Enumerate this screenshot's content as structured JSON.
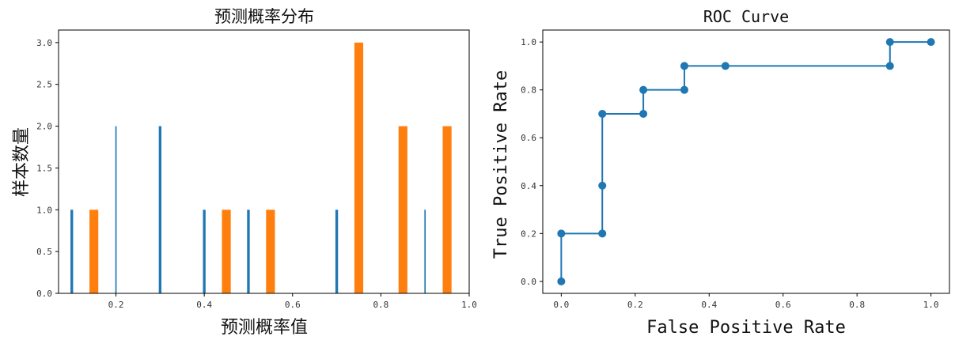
{
  "chart_data": [
    {
      "type": "bar",
      "title": "预测概率分布",
      "xlabel": "预测概率值",
      "ylabel": "样本数量",
      "xlim": [
        0.07,
        1.0
      ],
      "ylim": [
        0,
        3.15
      ],
      "xticks": [
        "0.2",
        "0.4",
        "0.6",
        "0.8",
        "1.0"
      ],
      "yticks": [
        "0.0",
        "0.5",
        "1.0",
        "1.5",
        "2.0",
        "2.5",
        "3.0"
      ],
      "series": [
        {
          "color": "#1f77b4",
          "bars": [
            {
              "x": 0.1,
              "value": 1,
              "width": 0.006
            },
            {
              "x": 0.2,
              "value": 2,
              "width": 0.003
            },
            {
              "x": 0.3,
              "value": 2,
              "width": 0.006
            },
            {
              "x": 0.4,
              "value": 1,
              "width": 0.006
            },
            {
              "x": 0.5,
              "value": 1,
              "width": 0.006
            },
            {
              "x": 0.7,
              "value": 1,
              "width": 0.006
            },
            {
              "x": 0.9,
              "value": 1,
              "width": 0.003
            }
          ]
        },
        {
          "color": "#ff7f0e",
          "bars": [
            {
              "x": 0.15,
              "value": 1,
              "width": 0.02
            },
            {
              "x": 0.45,
              "value": 1,
              "width": 0.02
            },
            {
              "x": 0.55,
              "value": 1,
              "width": 0.02
            },
            {
              "x": 0.75,
              "value": 3,
              "width": 0.02
            },
            {
              "x": 0.85,
              "value": 2,
              "width": 0.02
            },
            {
              "x": 0.95,
              "value": 2,
              "width": 0.02
            }
          ]
        }
      ]
    },
    {
      "type": "line",
      "title": "ROC Curve",
      "xlabel": "False Positive Rate",
      "ylabel": "True Positive Rate",
      "xlim": [
        -0.05,
        1.05
      ],
      "ylim": [
        -0.05,
        1.05
      ],
      "xticks": [
        "0.0",
        "0.2",
        "0.4",
        "0.6",
        "0.8",
        "1.0"
      ],
      "yticks": [
        "0.0",
        "0.2",
        "0.4",
        "0.6",
        "0.8",
        "1.0"
      ],
      "series": [
        {
          "color": "#1f77b4",
          "x": [
            0.0,
            0.0,
            0.111,
            0.111,
            0.111,
            0.222,
            0.222,
            0.333,
            0.333,
            0.444,
            0.889,
            0.889,
            1.0
          ],
          "y": [
            0.0,
            0.2,
            0.2,
            0.4,
            0.7,
            0.7,
            0.8,
            0.8,
            0.9,
            0.9,
            0.9,
            1.0,
            1.0
          ]
        }
      ]
    }
  ]
}
